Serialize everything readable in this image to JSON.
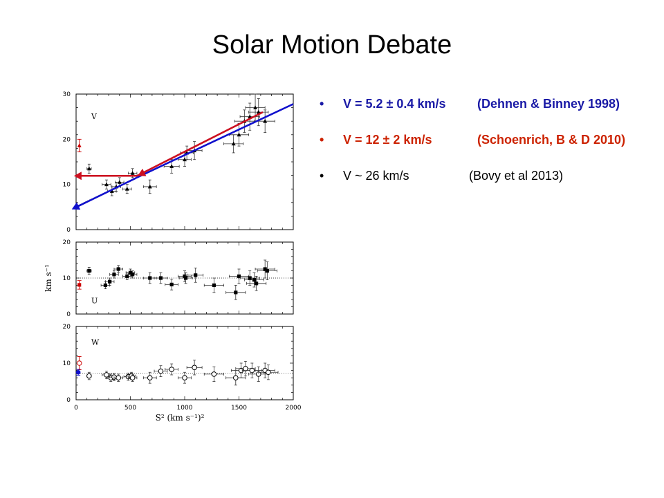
{
  "slide": {
    "title": "Solar Motion Debate"
  },
  "bullets": [
    {
      "value": "V = 5.2 ±  0.4 km/s",
      "ref": "(Dehnen & Binney 1998)",
      "color": "#1a1aa6",
      "bold": true
    },
    {
      "value": "V = 12 ±  2 km/s",
      "ref": "(Schoenrich, B & D 2010)",
      "color": "#cc2200",
      "bold": true
    },
    {
      "value": "V ~ 26 km/s",
      "ref": "(Bovy et al 2013)",
      "color": "#000000",
      "bold": false
    }
  ],
  "bullet_marker": "•",
  "chart_data": [
    {
      "type": "scatter",
      "panel_label": "V",
      "ylim": [
        0,
        30
      ],
      "yticks": [
        "0",
        "10",
        "20",
        "30"
      ],
      "xlim": [
        0,
        2000
      ],
      "series": [
        {
          "marker": "filled-triangle",
          "color": "#000000",
          "x": [
            120,
            280,
            330,
            370,
            400,
            470,
            520,
            680,
            880,
            1000,
            1020,
            1090,
            1450,
            1500,
            1550,
            1600,
            1650,
            1680,
            1740
          ],
          "y": [
            13.5,
            10,
            8.5,
            9.5,
            10.5,
            9,
            12.5,
            9.5,
            14,
            15.5,
            17,
            17.5,
            19,
            21,
            24,
            25,
            27,
            26,
            24
          ],
          "xerr": [
            20,
            40,
            40,
            40,
            40,
            40,
            40,
            60,
            70,
            60,
            60,
            70,
            90,
            90,
            90,
            90,
            90,
            90,
            90
          ],
          "yerr": [
            1,
            1,
            1,
            1,
            1,
            1,
            1,
            1.5,
            1.5,
            1.5,
            1.5,
            2,
            2,
            2.5,
            2.5,
            3,
            3,
            3,
            2.5
          ]
        }
      ],
      "red_point": {
        "x": 30,
        "y": 18.6,
        "yerr": 1.4,
        "color": "#cc0000",
        "marker": "filled-triangle"
      },
      "fit_line": {
        "x": [
          0,
          2000
        ],
        "y": [
          5.2,
          27.8
        ],
        "color": "#1010cc"
      },
      "arrows": [
        {
          "color": "#1010cc",
          "from": [
            550,
            11.4
          ],
          "to": [
            -40,
            4.5
          ]
        },
        {
          "color": "#cc1020",
          "from": [
            1720,
            26
          ],
          "to": [
            560,
            11.9
          ]
        },
        {
          "color": "#cc1020",
          "from": [
            560,
            11.9
          ],
          "to": [
            -20,
            11.9
          ]
        }
      ]
    },
    {
      "type": "scatter",
      "panel_label": "U",
      "ylim": [
        0,
        20
      ],
      "yticks": [
        "0",
        "10",
        "20"
      ],
      "xlim": [
        0,
        2000
      ],
      "reference_line": 10,
      "series": [
        {
          "marker": "filled-square",
          "color": "#000000",
          "x": [
            120,
            270,
            310,
            350,
            390,
            470,
            500,
            520,
            680,
            780,
            880,
            1000,
            1010,
            1100,
            1270,
            1470,
            1500,
            1600,
            1640,
            1660,
            1740,
            1760
          ],
          "y": [
            12,
            8,
            9,
            11,
            12.5,
            10.5,
            11.5,
            11,
            10,
            10,
            8.2,
            10.5,
            10,
            10.8,
            8,
            6,
            10.5,
            10,
            9.5,
            8.5,
            12.5,
            12
          ],
          "xerr": [
            20,
            40,
            40,
            40,
            40,
            40,
            40,
            40,
            60,
            60,
            60,
            60,
            60,
            70,
            90,
            90,
            90,
            90,
            90,
            90,
            90,
            90
          ],
          "yerr": [
            1,
            1,
            1,
            1,
            1,
            1,
            1,
            1,
            1.5,
            1.5,
            1.5,
            1.5,
            1.5,
            2,
            2,
            2,
            2,
            2,
            2,
            2,
            2.5,
            2.5
          ]
        }
      ],
      "red_point": {
        "x": 30,
        "y": 8.1,
        "yerr": 1.2,
        "color": "#cc0000",
        "marker": "filled-square"
      }
    },
    {
      "type": "scatter",
      "panel_label": "W",
      "ylim": [
        0,
        20
      ],
      "yticks": [
        "0",
        "10",
        "20"
      ],
      "xticks": [
        "0",
        "500",
        "1000",
        "1500",
        "2000"
      ],
      "xlim": [
        0,
        2000
      ],
      "reference_line": 7.3,
      "xlabel": "S² (km s⁻¹)²",
      "ylabel": "km s⁻¹",
      "series": [
        {
          "marker": "open-circle",
          "color": "#000000",
          "x": [
            120,
            280,
            320,
            350,
            390,
            480,
            510,
            520,
            680,
            780,
            880,
            1000,
            1090,
            1270,
            1470,
            1520,
            1560,
            1620,
            1680,
            1740,
            1770
          ],
          "y": [
            6.5,
            6.8,
            6,
            6.2,
            6,
            6.3,
            6.5,
            6,
            6,
            7.8,
            8.3,
            6,
            8.8,
            7,
            6,
            8,
            8.5,
            8,
            7,
            8,
            7.5
          ],
          "xerr": [
            20,
            40,
            40,
            40,
            40,
            40,
            40,
            40,
            60,
            60,
            60,
            60,
            70,
            90,
            90,
            90,
            90,
            90,
            90,
            90,
            90
          ],
          "yerr": [
            1,
            1,
            1,
            1,
            1,
            1,
            1,
            1,
            1.5,
            1.5,
            1.5,
            1.5,
            2,
            2,
            2,
            2,
            2,
            2,
            2,
            2,
            2
          ]
        }
      ],
      "red_point": {
        "x": 30,
        "y": 10,
        "yerr": 1.8,
        "color": "#cc0000",
        "marker": "open-circle"
      },
      "blue_point": {
        "x": 20,
        "y": 7.5,
        "yerr": 0.8,
        "color": "#1010cc",
        "marker": "filled-circle"
      }
    }
  ]
}
